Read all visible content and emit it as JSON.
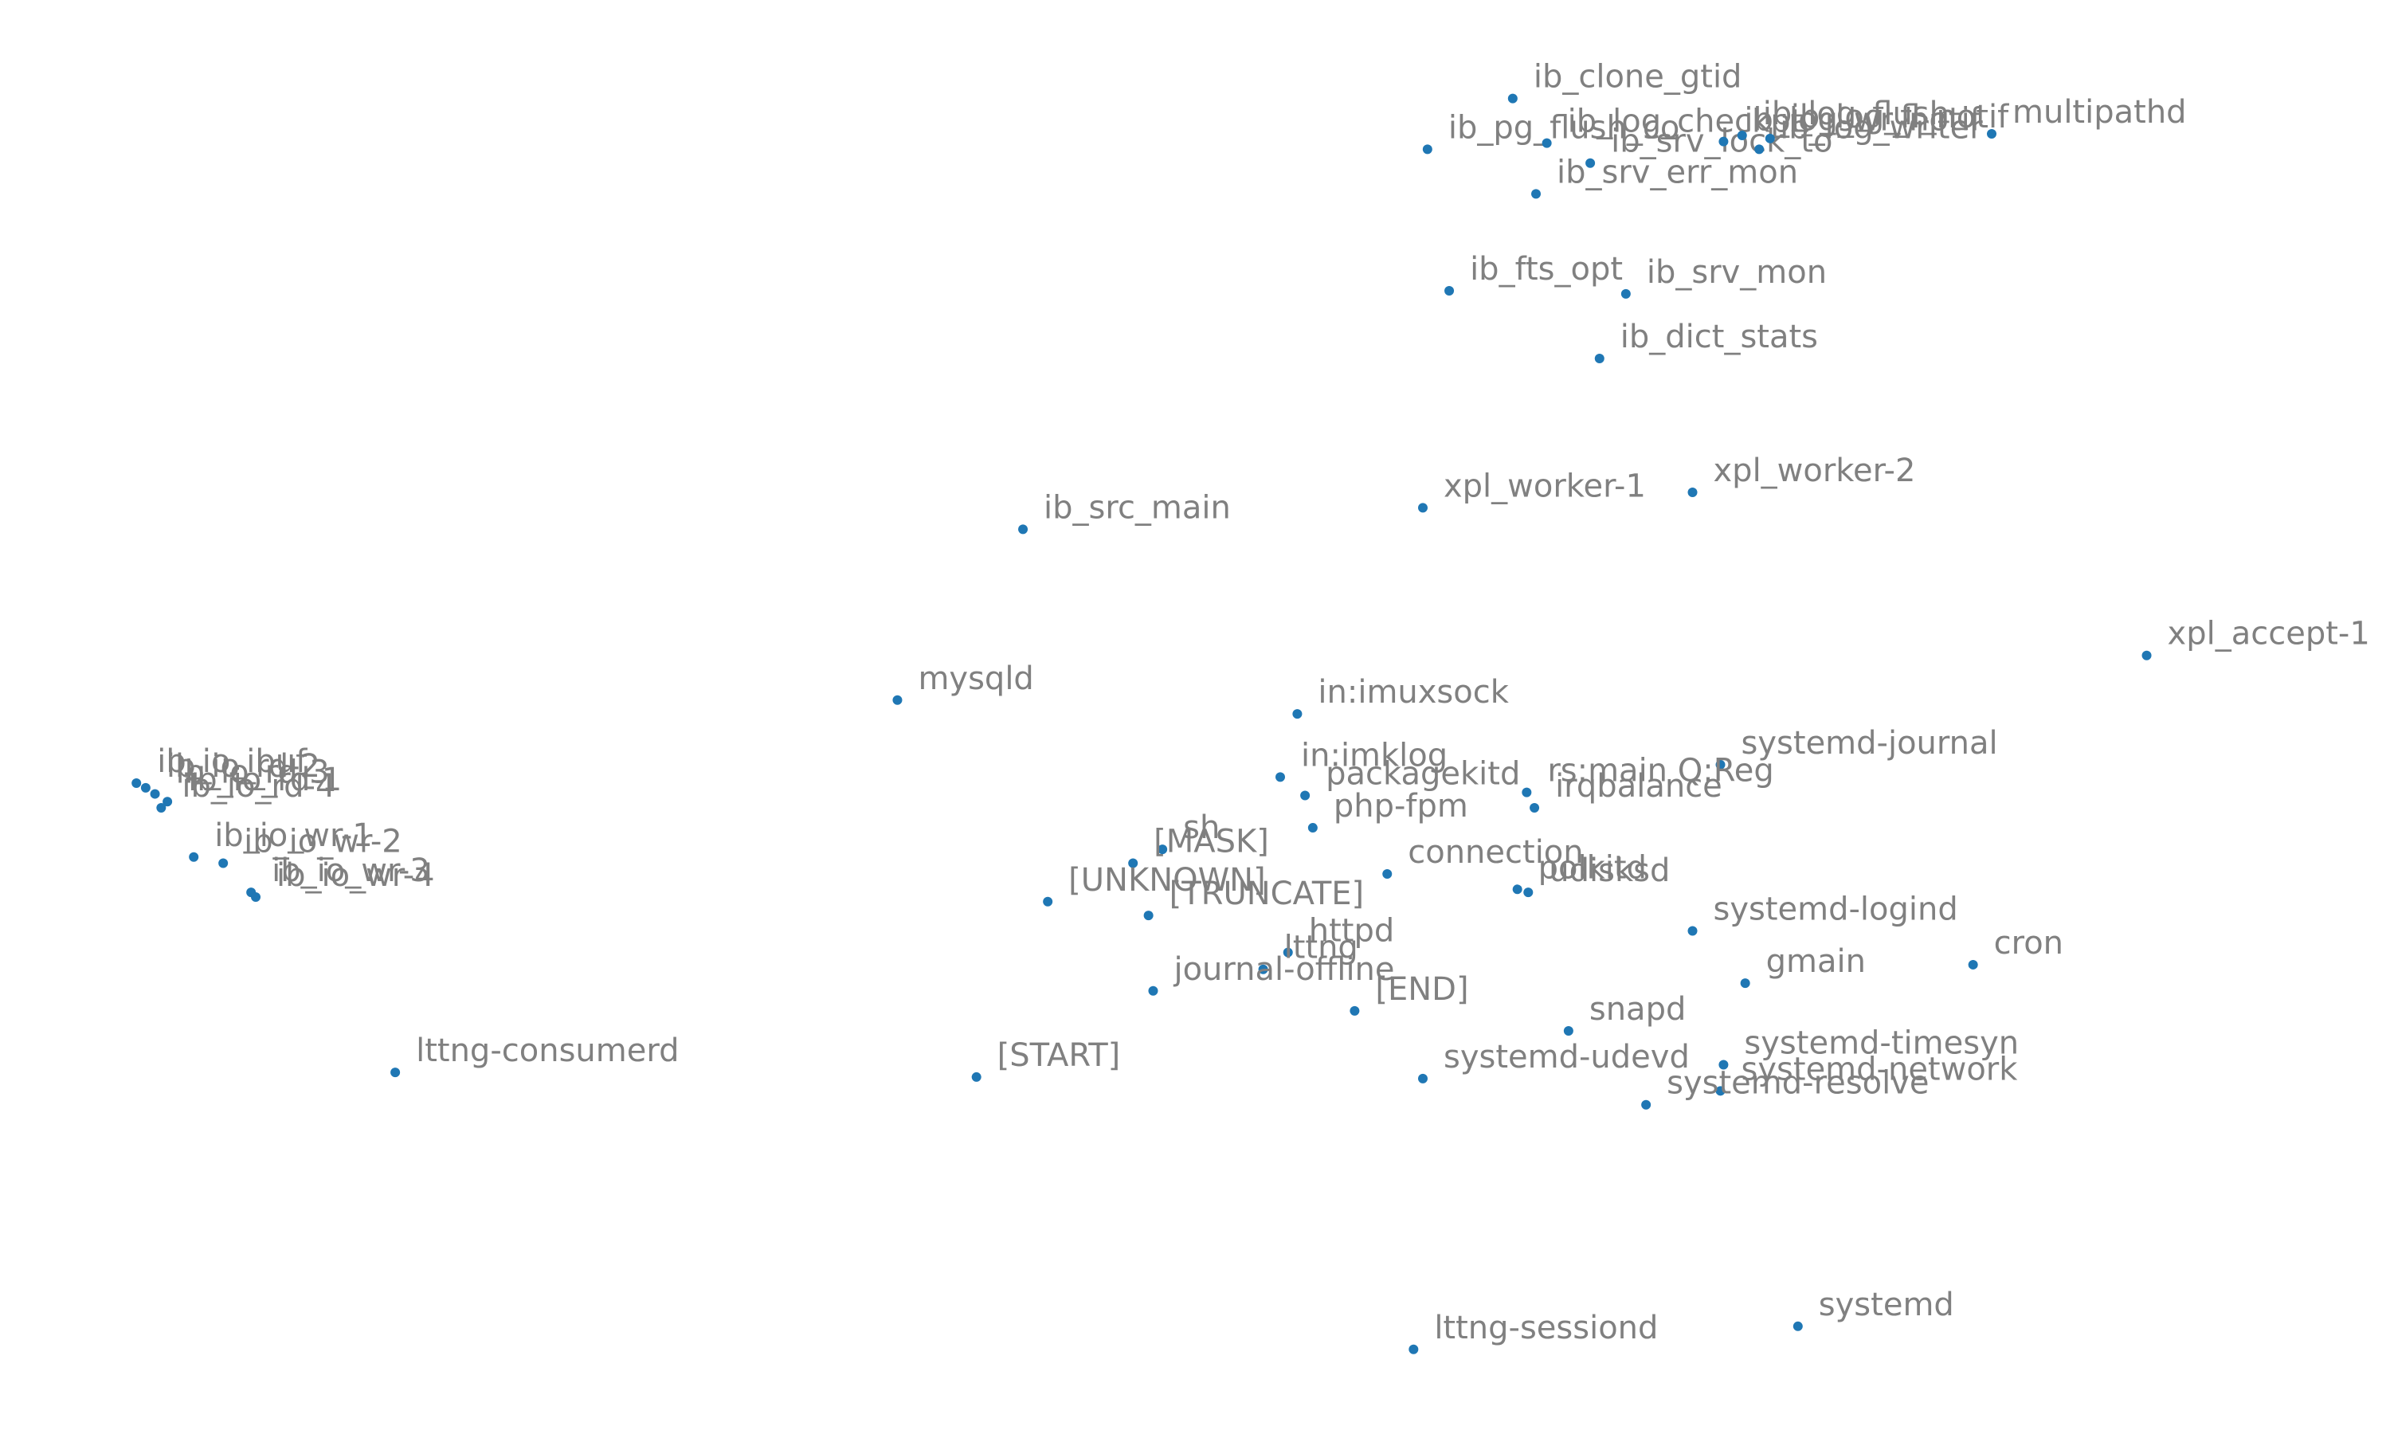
{
  "chart_data": {
    "type": "scatter",
    "title": "",
    "xlabel": "",
    "ylabel": "",
    "axes_visible": false,
    "grid": false,
    "legend": "none",
    "xlim": [
      0,
      1542
    ],
    "ylim": [
      0,
      932
    ],
    "y_direction": "down",
    "marker_color": "#1f77b4",
    "label_color": "#808080",
    "points": [
      {
        "label": "ib_clone_gtid",
        "x": 976,
        "y": 64
      },
      {
        "label": "ib_pg_flush_co",
        "x": 921,
        "y": 97
      },
      {
        "label": "ib_log_checkpt",
        "x": 998,
        "y": 93
      },
      {
        "label": "ib_srv_lock_to",
        "x": 1026,
        "y": 106
      },
      {
        "label": "ib_log_wr_notif",
        "x": 1112,
        "y": 92
      },
      {
        "label": "ib_log_flush",
        "x": 1124,
        "y": 88
      },
      {
        "label": "ib_log_writer",
        "x": 1135,
        "y": 97
      },
      {
        "label": "ib_log_fl_notif",
        "x": 1142,
        "y": 90
      },
      {
        "label": "multipathd",
        "x": 1285,
        "y": 87
      },
      {
        "label": "ib_srv_err_mon",
        "x": 991,
        "y": 126
      },
      {
        "label": "ib_fts_opt",
        "x": 935,
        "y": 189
      },
      {
        "label": "ib_srv_mon",
        "x": 1049,
        "y": 191
      },
      {
        "label": "ib_dict_stats",
        "x": 1032,
        "y": 233
      },
      {
        "label": "ib_src_main",
        "x": 660,
        "y": 344
      },
      {
        "label": "xpl_worker-1",
        "x": 918,
        "y": 330
      },
      {
        "label": "xpl_worker-2",
        "x": 1092,
        "y": 320
      },
      {
        "label": "xpl_accept-1",
        "x": 1385,
        "y": 426
      },
      {
        "label": "mysqld",
        "x": 579,
        "y": 455
      },
      {
        "label": "in:imuxsock",
        "x": 837,
        "y": 464
      },
      {
        "label": "systemd-journal",
        "x": 1110,
        "y": 497
      },
      {
        "label": "in:imklog",
        "x": 826,
        "y": 505
      },
      {
        "label": "packagekitd",
        "x": 842,
        "y": 517
      },
      {
        "label": "rs:main Q:Reg",
        "x": 985,
        "y": 515
      },
      {
        "label": "irqbalance",
        "x": 990,
        "y": 525
      },
      {
        "label": "php-fpm",
        "x": 847,
        "y": 538
      },
      {
        "label": "ib_io_ibuf",
        "x": 88,
        "y": 509
      },
      {
        "label": "ib_io_rd-2",
        "x": 94,
        "y": 512
      },
      {
        "label": "ib_io_rd-3",
        "x": 100,
        "y": 516
      },
      {
        "label": "ib_io_rd-1",
        "x": 108,
        "y": 521
      },
      {
        "label": "ib_io_rd-4",
        "x": 104,
        "y": 525
      },
      {
        "label": "ib_io_wr-1",
        "x": 125,
        "y": 557
      },
      {
        "label": "ib_io_wr-2",
        "x": 144,
        "y": 561
      },
      {
        "label": "ib_io_wr-3",
        "x": 162,
        "y": 580
      },
      {
        "label": "ib_io_wr-4",
        "x": 165,
        "y": 583
      },
      {
        "label": "sh",
        "x": 750,
        "y": 552
      },
      {
        "label": "[MASK]",
        "x": 731,
        "y": 561
      },
      {
        "label": "connection",
        "x": 895,
        "y": 568
      },
      {
        "label": "polkitd",
        "x": 979,
        "y": 578
      },
      {
        "label": "udisksd",
        "x": 986,
        "y": 580
      },
      {
        "label": "[UNKNOWN]",
        "x": 676,
        "y": 586
      },
      {
        "label": "[TRUNCATE]",
        "x": 741,
        "y": 595
      },
      {
        "label": "systemd-logind",
        "x": 1092,
        "y": 605
      },
      {
        "label": "httpd",
        "x": 831,
        "y": 619
      },
      {
        "label": "lttng",
        "x": 815,
        "y": 630
      },
      {
        "label": "journal-offline",
        "x": 744,
        "y": 644
      },
      {
        "label": "cron",
        "x": 1273,
        "y": 627
      },
      {
        "label": "gmain",
        "x": 1126,
        "y": 639
      },
      {
        "label": "[END]",
        "x": 874,
        "y": 657
      },
      {
        "label": "snapd",
        "x": 1012,
        "y": 670
      },
      {
        "label": "systemd-timesyn",
        "x": 1112,
        "y": 692
      },
      {
        "label": "lttng-consumerd",
        "x": 255,
        "y": 697
      },
      {
        "label": "[START]",
        "x": 630,
        "y": 700
      },
      {
        "label": "systemd-udevd",
        "x": 918,
        "y": 701
      },
      {
        "label": "systemd-network",
        "x": 1110,
        "y": 709
      },
      {
        "label": "systemd-resolve",
        "x": 1062,
        "y": 718
      },
      {
        "label": "lttng-sessiond",
        "x": 912,
        "y": 877
      },
      {
        "label": "systemd",
        "x": 1160,
        "y": 862
      }
    ]
  }
}
